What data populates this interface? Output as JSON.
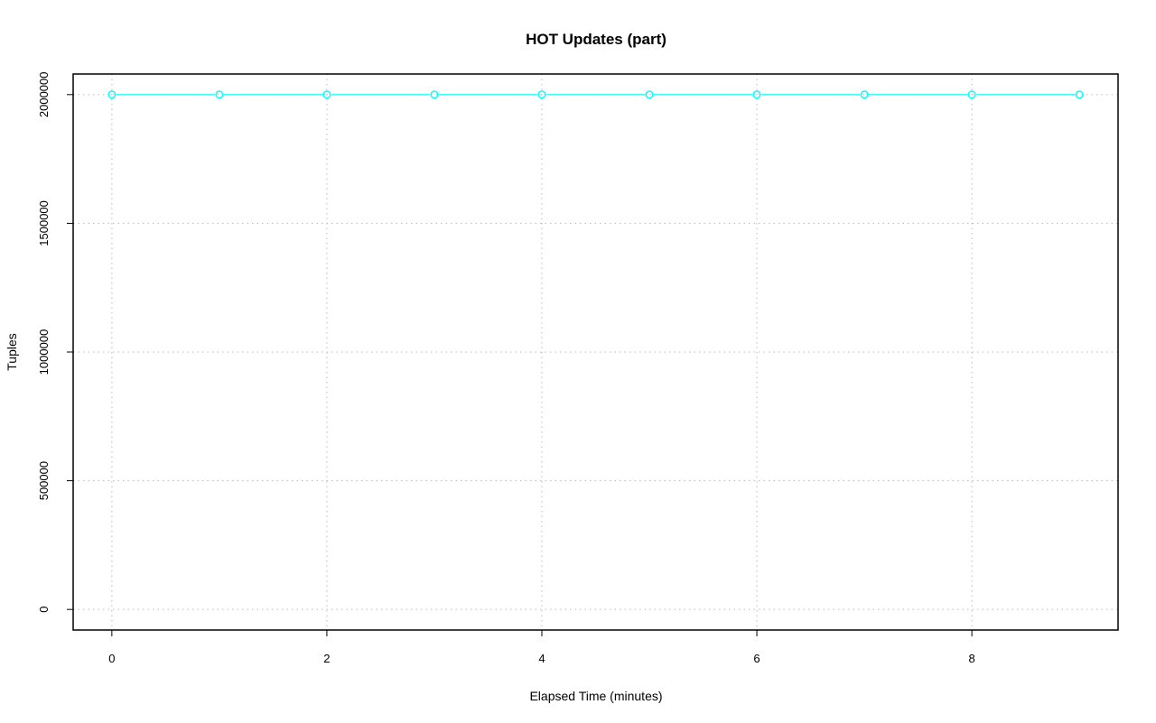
{
  "chart_data": {
    "type": "line",
    "title": "HOT Updates (part)",
    "xlabel": "Elapsed Time (minutes)",
    "ylabel": "Tuples",
    "x": [
      0,
      1,
      2,
      3,
      4,
      5,
      6,
      7,
      8,
      9
    ],
    "series": [
      {
        "values": [
          2000000,
          2000000,
          2000000,
          2000000,
          2000000,
          2000000,
          2000000,
          2000000,
          2000000,
          2000000
        ],
        "color": "#00ffff"
      }
    ],
    "xlim": [
      -0.36,
      9.36
    ],
    "ylim": [
      -80000,
      2080000
    ],
    "xticks": [
      "0",
      "2",
      "4",
      "6",
      "8"
    ],
    "xtick_values": [
      0,
      2,
      4,
      6,
      8
    ],
    "yticks": [
      "0",
      "500000",
      "1000000",
      "1500000",
      "2000000"
    ],
    "ytick_values": [
      0,
      500000,
      1000000,
      1500000,
      2000000
    ],
    "grid": true,
    "grid_x_values": [
      0,
      2,
      4,
      6,
      8
    ],
    "marker": "open-circle"
  }
}
